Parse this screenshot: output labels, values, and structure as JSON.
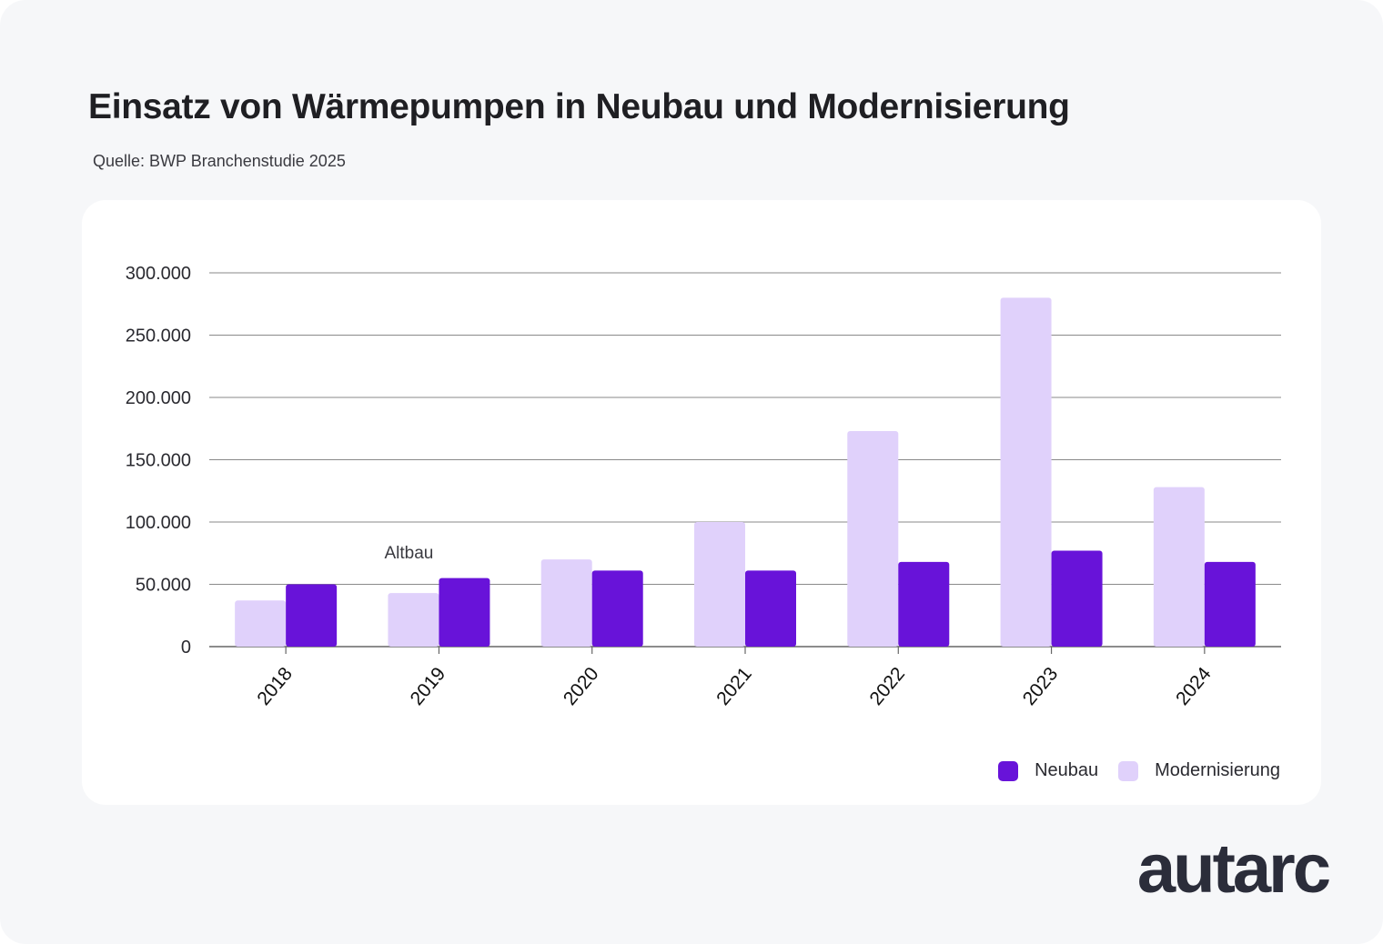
{
  "title": "Einsatz von Wärmepumpen in Neubau und Modernisierung",
  "source": "Quelle: BWP Branchenstudie 2025",
  "logo": "autarc",
  "colors": {
    "neubau": "#6813d9",
    "modernisierung": "#e0d1fb",
    "grid": "#8a8a8a",
    "axis": "#666666",
    "text": "#2a2a30"
  },
  "legend": {
    "neubau_label": "Neubau",
    "modernisierung_label": "Modernisierung"
  },
  "chart_data": {
    "type": "bar",
    "title": "Einsatz von Wärmepumpen in Neubau und Modernisierung",
    "categories": [
      "2018",
      "2019",
      "2020",
      "2021",
      "2022",
      "2023",
      "2024"
    ],
    "series": [
      {
        "name": "Modernisierung",
        "values": [
          37000,
          43000,
          70000,
          100000,
          173000,
          280000,
          128000
        ]
      },
      {
        "name": "Neubau",
        "values": [
          50000,
          55000,
          61000,
          61000,
          68000,
          77000,
          68000
        ]
      }
    ],
    "ylim": [
      0,
      300000
    ],
    "yticks": [
      0,
      50000,
      100000,
      150000,
      200000,
      250000,
      300000
    ],
    "ytick_labels": [
      "0",
      "50.000",
      "100.000",
      "150.000",
      "200.000",
      "250.000",
      "300.000"
    ],
    "xlabel": "",
    "ylabel": "",
    "grid": true,
    "legend_position": "bottom-right",
    "annotations": [
      {
        "text": "Altbau",
        "category": "2019"
      }
    ]
  }
}
